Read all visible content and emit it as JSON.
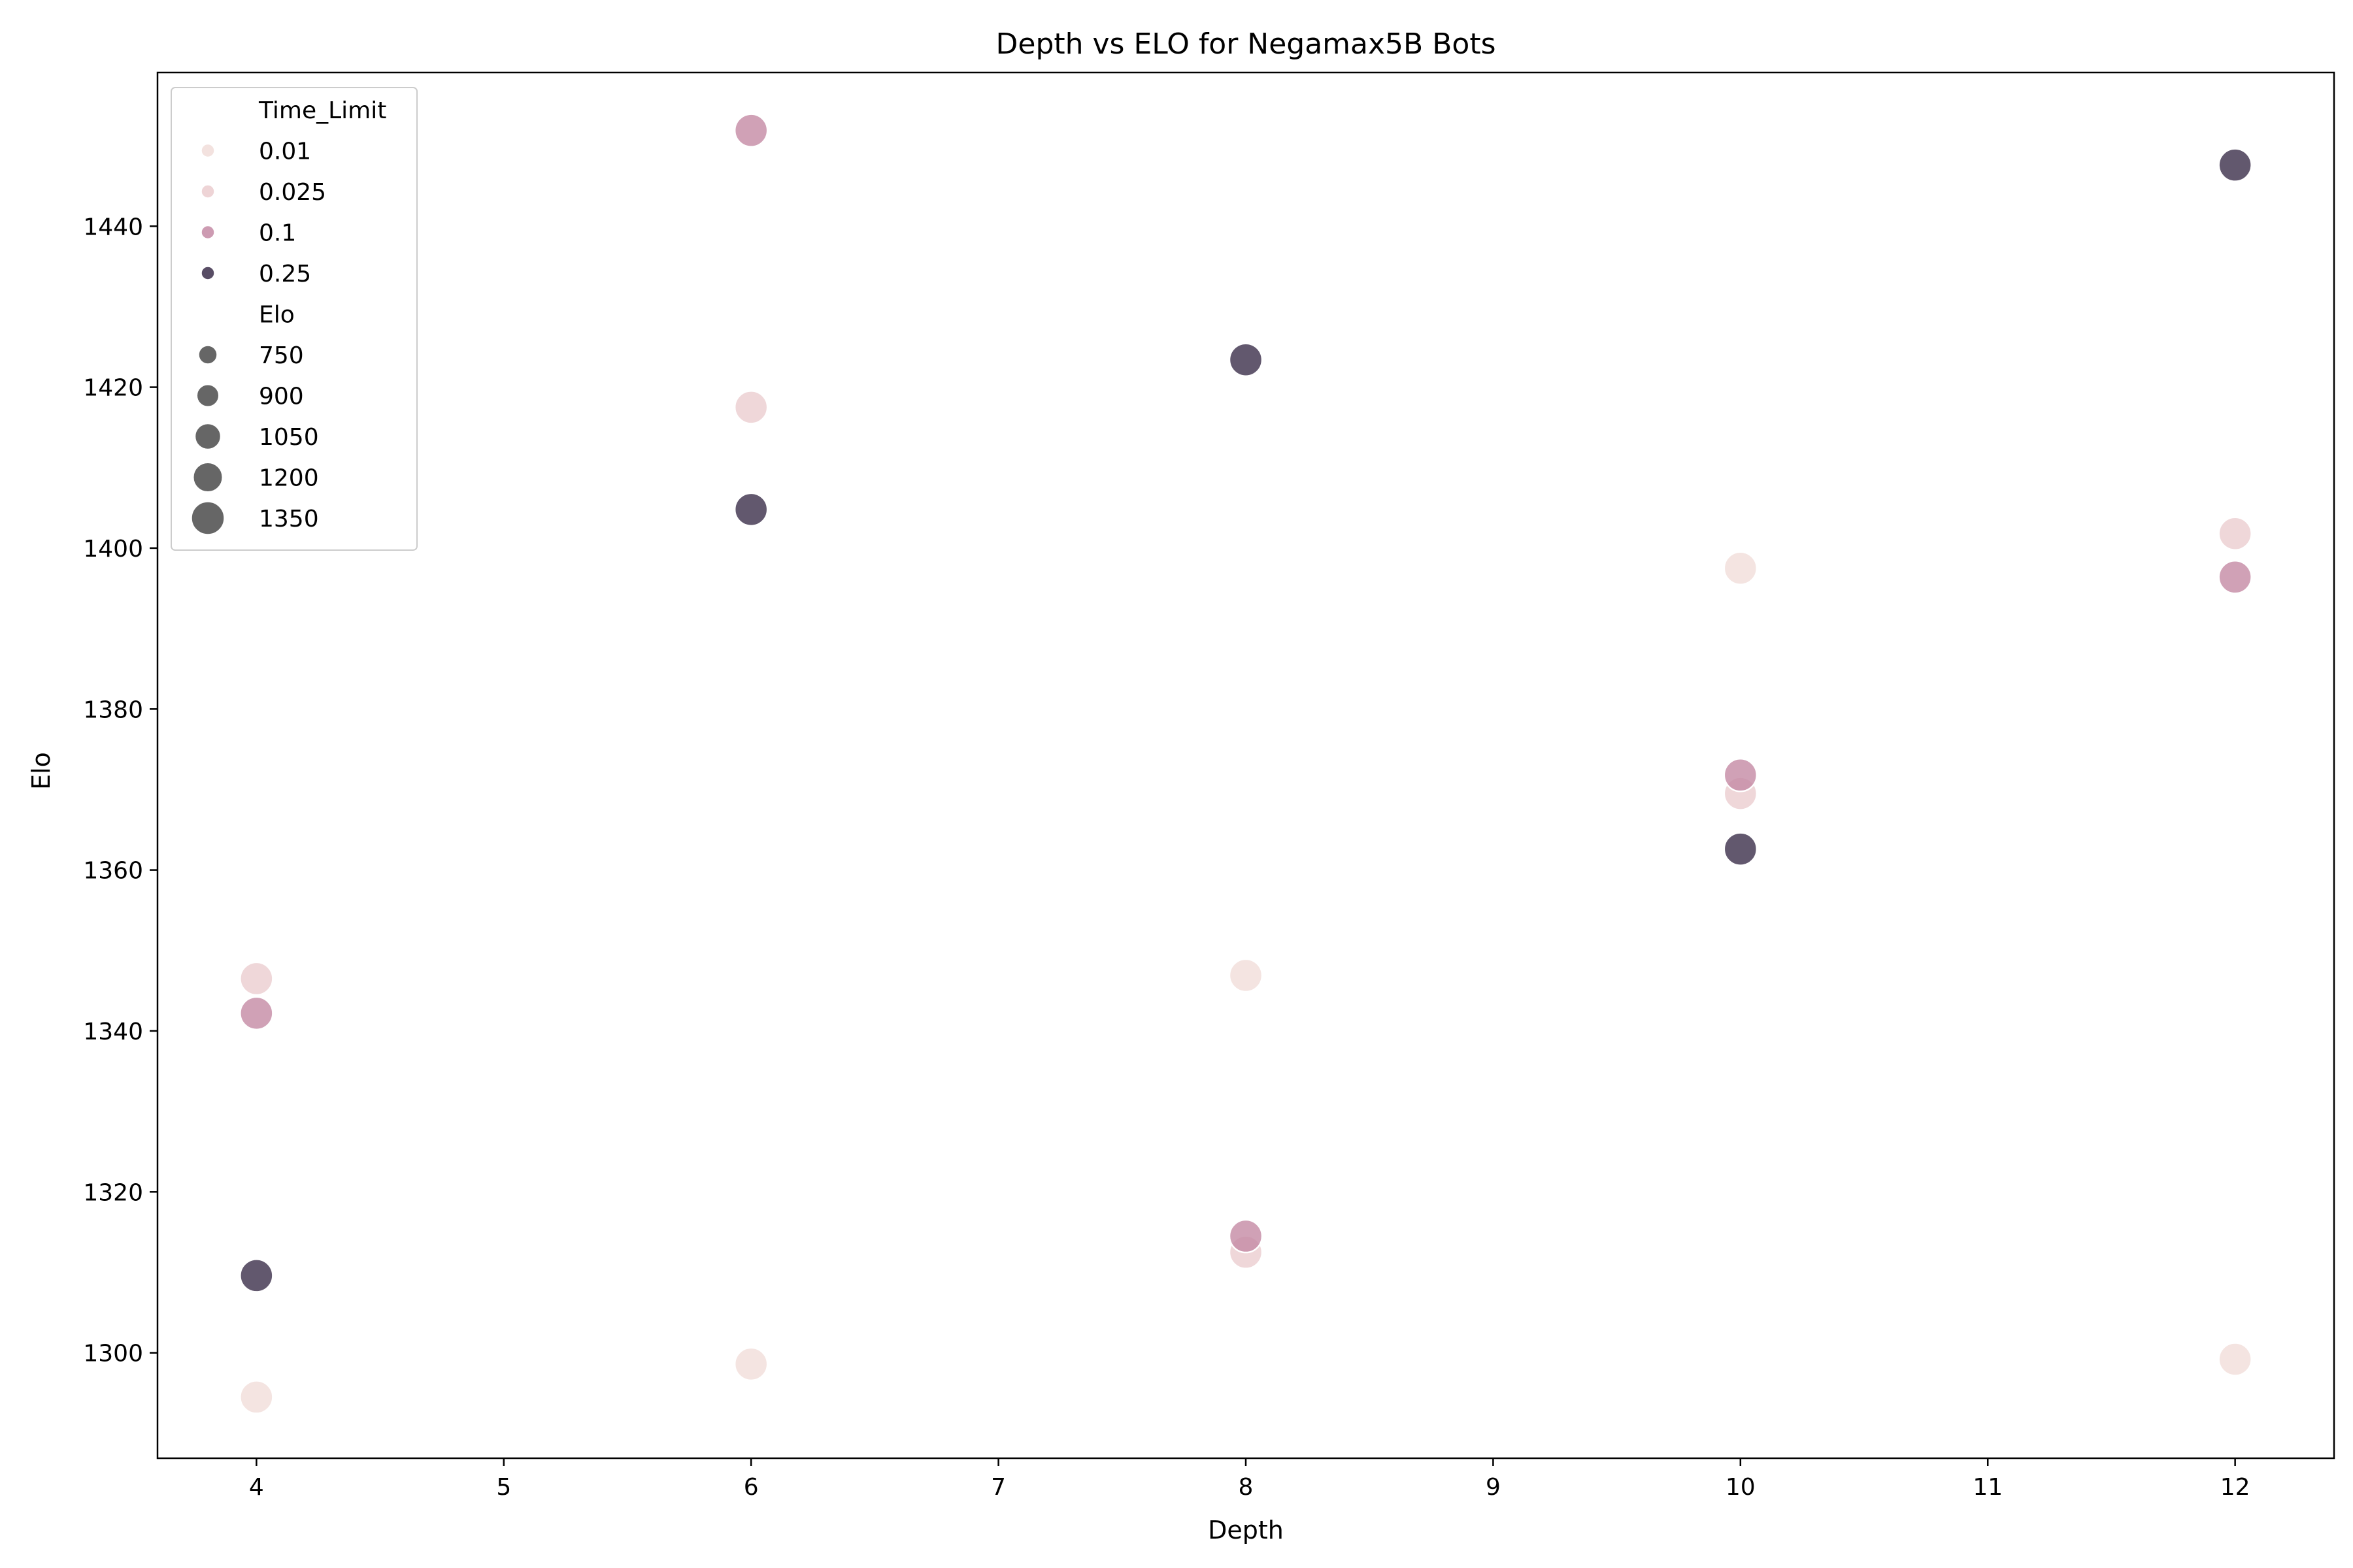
{
  "chart_data": {
    "type": "scatter",
    "title": "Depth vs ELO for Negamax5B Bots",
    "xlabel": "Depth",
    "ylabel": "Elo",
    "xlim": [
      3.6,
      12.4
    ],
    "ylim": [
      1286.9,
      1459.1
    ],
    "x_ticks": [
      4,
      5,
      6,
      7,
      8,
      9,
      10,
      11,
      12
    ],
    "y_ticks": [
      1300,
      1320,
      1340,
      1360,
      1380,
      1400,
      1420,
      1440
    ],
    "grid": false,
    "legend_position": "top-left",
    "hue_variable": "Time_Limit",
    "size_variable": "Elo",
    "hue_legend": {
      "title": "Time_Limit",
      "entries": [
        {
          "label": "0.01",
          "color": "#f1ddd9"
        },
        {
          "label": "0.025",
          "color": "#ebcdcf"
        },
        {
          "label": "0.1",
          "color": "#c48aa4"
        },
        {
          "label": "0.25",
          "color": "#3b2e4a"
        }
      ]
    },
    "size_legend": {
      "title": "Elo",
      "entries": [
        {
          "label": "750",
          "value": 750
        },
        {
          "label": "900",
          "value": 900
        },
        {
          "label": "1050",
          "value": 1050
        },
        {
          "label": "1200",
          "value": 1200
        },
        {
          "label": "1350",
          "value": 1350
        }
      ],
      "color": "#555555"
    },
    "points": [
      {
        "x": 4,
        "y": 1294.5,
        "time_limit": 0.01
      },
      {
        "x": 4,
        "y": 1346.5,
        "time_limit": 0.025
      },
      {
        "x": 4,
        "y": 1342.2,
        "time_limit": 0.1
      },
      {
        "x": 4,
        "y": 1309.6,
        "time_limit": 0.25
      },
      {
        "x": 6,
        "y": 1298.6,
        "time_limit": 0.01
      },
      {
        "x": 6,
        "y": 1417.5,
        "time_limit": 0.025
      },
      {
        "x": 6,
        "y": 1451.9,
        "time_limit": 0.1
      },
      {
        "x": 6,
        "y": 1404.8,
        "time_limit": 0.25
      },
      {
        "x": 8,
        "y": 1346.9,
        "time_limit": 0.01
      },
      {
        "x": 8,
        "y": 1312.5,
        "time_limit": 0.025
      },
      {
        "x": 8,
        "y": 1314.5,
        "time_limit": 0.1
      },
      {
        "x": 8,
        "y": 1423.4,
        "time_limit": 0.25
      },
      {
        "x": 10,
        "y": 1397.5,
        "time_limit": 0.01
      },
      {
        "x": 10,
        "y": 1369.5,
        "time_limit": 0.025
      },
      {
        "x": 10,
        "y": 1371.8,
        "time_limit": 0.1
      },
      {
        "x": 10,
        "y": 1362.6,
        "time_limit": 0.25
      },
      {
        "x": 12,
        "y": 1299.2,
        "time_limit": 0.01
      },
      {
        "x": 12,
        "y": 1401.8,
        "time_limit": 0.025
      },
      {
        "x": 12,
        "y": 1396.4,
        "time_limit": 0.1
      },
      {
        "x": 12,
        "y": 1447.6,
        "time_limit": 0.25
      }
    ]
  }
}
